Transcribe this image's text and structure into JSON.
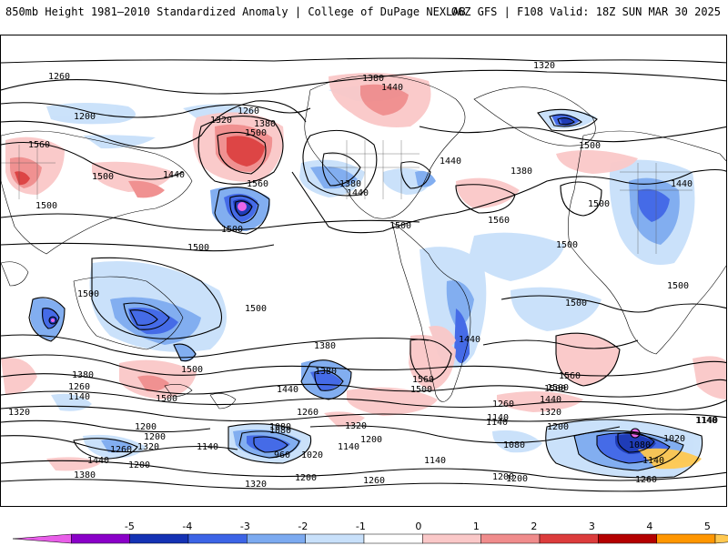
{
  "header": {
    "title_left": "850mb Height 1981–2010 Standardized Anomaly | College of DuPage NEXLAB",
    "title_right": "06Z GFS | F108 Valid: 18Z SUN MAR 30 2025"
  },
  "colorbar": {
    "labels": [
      "-5",
      "-4",
      "-3",
      "-2",
      "-1",
      "0",
      "1",
      "2",
      "3",
      "4",
      "5"
    ],
    "colors": [
      "#e85ee8",
      "#8a00c8",
      "#1432b4",
      "#3c64e6",
      "#7caaf0",
      "#c8e0fa",
      "#ffffff",
      "#fac8c8",
      "#f08c8c",
      "#dc3c3c",
      "#b40000",
      "#ff9600",
      "#ffc850"
    ]
  },
  "contour_labels": [
    {
      "text": "1260",
      "name": "contour-label"
    },
    {
      "text": "1200",
      "name": "contour-label"
    },
    {
      "text": "1380",
      "name": "contour-label"
    },
    {
      "text": "1320",
      "name": "contour-label"
    },
    {
      "text": "1440",
      "name": "contour-label"
    },
    {
      "text": "1260",
      "name": "contour-label"
    },
    {
      "text": "1320",
      "name": "contour-label"
    },
    {
      "text": "1380",
      "name": "contour-label"
    },
    {
      "text": "1500",
      "name": "contour-label"
    },
    {
      "text": "1560",
      "name": "contour-label"
    },
    {
      "text": "1500",
      "name": "contour-label"
    },
    {
      "text": "1440",
      "name": "contour-label"
    },
    {
      "text": "1500",
      "name": "contour-label"
    },
    {
      "text": "1560",
      "name": "contour-label"
    },
    {
      "text": "1500",
      "name": "contour-label"
    },
    {
      "text": "1380",
      "name": "contour-label"
    },
    {
      "text": "1440",
      "name": "contour-label"
    },
    {
      "text": "1440",
      "name": "contour-label"
    },
    {
      "text": "1380",
      "name": "contour-label"
    },
    {
      "text": "1500",
      "name": "contour-label"
    },
    {
      "text": "1560",
      "name": "contour-label"
    },
    {
      "text": "1500",
      "name": "contour-label"
    },
    {
      "text": "1500",
      "name": "contour-label"
    },
    {
      "text": "1440",
      "name": "contour-label"
    },
    {
      "text": "1500",
      "name": "contour-label"
    },
    {
      "text": "1500",
      "name": "contour-label"
    },
    {
      "text": "1500",
      "name": "contour-label"
    },
    {
      "text": "1500",
      "name": "contour-label"
    },
    {
      "text": "1500",
      "name": "contour-label"
    },
    {
      "text": "1500",
      "name": "contour-label"
    },
    {
      "text": "1500",
      "name": "contour-label"
    },
    {
      "text": "1440",
      "name": "contour-label"
    },
    {
      "text": "1500",
      "name": "contour-label"
    },
    {
      "text": "1380",
      "name": "contour-label"
    },
    {
      "text": "1380",
      "name": "contour-label"
    },
    {
      "text": "1260",
      "name": "contour-label"
    },
    {
      "text": "1140",
      "name": "contour-label"
    },
    {
      "text": "1320",
      "name": "contour-label"
    },
    {
      "text": "1500",
      "name": "contour-label"
    },
    {
      "text": "1440",
      "name": "contour-label"
    },
    {
      "text": "1560",
      "name": "contour-label"
    },
    {
      "text": "1500",
      "name": "contour-label"
    },
    {
      "text": "1560",
      "name": "contour-label"
    },
    {
      "text": "1500",
      "name": "contour-label"
    },
    {
      "text": "1440",
      "name": "contour-label"
    },
    {
      "text": "1320",
      "name": "contour-label"
    },
    {
      "text": "1260",
      "name": "contour-label"
    },
    {
      "text": "1200",
      "name": "contour-label"
    },
    {
      "text": "1380",
      "name": "contour-label"
    },
    {
      "text": "1260",
      "name": "contour-label"
    },
    {
      "text": "1320",
      "name": "contour-label"
    },
    {
      "text": "1200",
      "name": "contour-label"
    },
    {
      "text": "1140",
      "name": "contour-label"
    },
    {
      "text": "1080",
      "name": "contour-label"
    },
    {
      "text": "1140",
      "name": "contour-label"
    },
    {
      "text": "1200",
      "name": "contour-label"
    },
    {
      "text": "1260",
      "name": "contour-label"
    },
    {
      "text": "1320",
      "name": "contour-label"
    },
    {
      "text": "1200",
      "name": "contour-label"
    },
    {
      "text": "1140",
      "name": "contour-label"
    },
    {
      "text": "1200",
      "name": "contour-label"
    },
    {
      "text": "1440",
      "name": "contour-label"
    },
    {
      "text": "1380",
      "name": "contour-label"
    },
    {
      "text": "1080",
      "name": "contour-label"
    },
    {
      "text": "960",
      "name": "contour-label"
    },
    {
      "text": "1020",
      "name": "contour-label"
    },
    {
      "text": "1140",
      "name": "contour-label"
    },
    {
      "text": "1200",
      "name": "contour-label"
    },
    {
      "text": "1140",
      "name": "contour-label"
    },
    {
      "text": "1200",
      "name": "contour-label"
    },
    {
      "text": "1260",
      "name": "contour-label"
    },
    {
      "text": "1320",
      "name": "contour-label"
    },
    {
      "text": "1140",
      "name": "contour-label"
    },
    {
      "text": "1080",
      "name": "contour-label"
    },
    {
      "text": "1080",
      "name": "contour-label"
    },
    {
      "text": "1020",
      "name": "contour-label"
    },
    {
      "text": "1140",
      "name": "contour-label"
    },
    {
      "text": "1200",
      "name": "contour-label"
    },
    {
      "text": "1260",
      "name": "contour-label"
    },
    {
      "text": "1140",
      "name": "contour-label"
    }
  ]
}
